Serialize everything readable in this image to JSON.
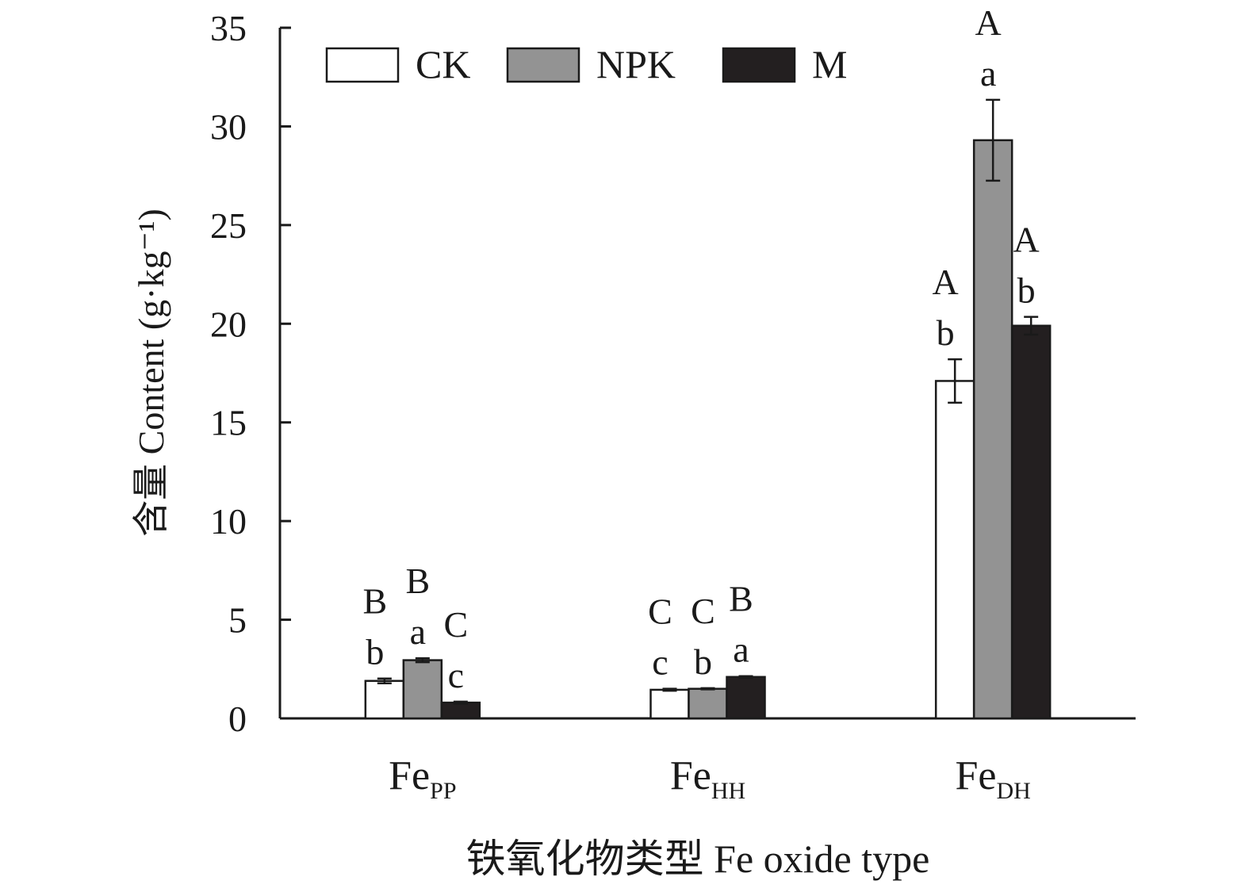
{
  "chart_data": {
    "type": "bar",
    "title": "",
    "xlabel": "铁氧化物类型 Fe oxide type",
    "ylabel": "含量 Content (g·kg⁻¹)",
    "ylim": [
      0,
      35
    ],
    "yticks": [
      0,
      5,
      10,
      15,
      20,
      25,
      30,
      35
    ],
    "categories": [
      {
        "base": "Fe",
        "sub": "PP"
      },
      {
        "base": "Fe",
        "sub": "HH"
      },
      {
        "base": "Fe",
        "sub": "DH"
      }
    ],
    "legend_position": "top-left",
    "grid": false,
    "series": [
      {
        "name": "CK",
        "color": "#ffffff",
        "values": [
          1.9,
          1.45,
          17.1
        ],
        "errors": [
          0.12,
          0.05,
          1.1
        ],
        "upper_letters": [
          "B",
          "C",
          "A"
        ],
        "lower_letters": [
          "b",
          "c",
          "b"
        ]
      },
      {
        "name": "NPK",
        "color": "#939393",
        "values": [
          2.95,
          1.5,
          29.3
        ],
        "errors": [
          0.1,
          0.03,
          2.05
        ],
        "upper_letters": [
          "B",
          "C",
          "A"
        ],
        "lower_letters": [
          "a",
          "b",
          "a"
        ]
      },
      {
        "name": "M",
        "color": "#231f20",
        "values": [
          0.8,
          2.1,
          19.9
        ],
        "errors": [
          0.05,
          0.04,
          0.45
        ],
        "upper_letters": [
          "C",
          "B",
          "A"
        ],
        "lower_letters": [
          "c",
          "a",
          "b"
        ]
      }
    ]
  }
}
